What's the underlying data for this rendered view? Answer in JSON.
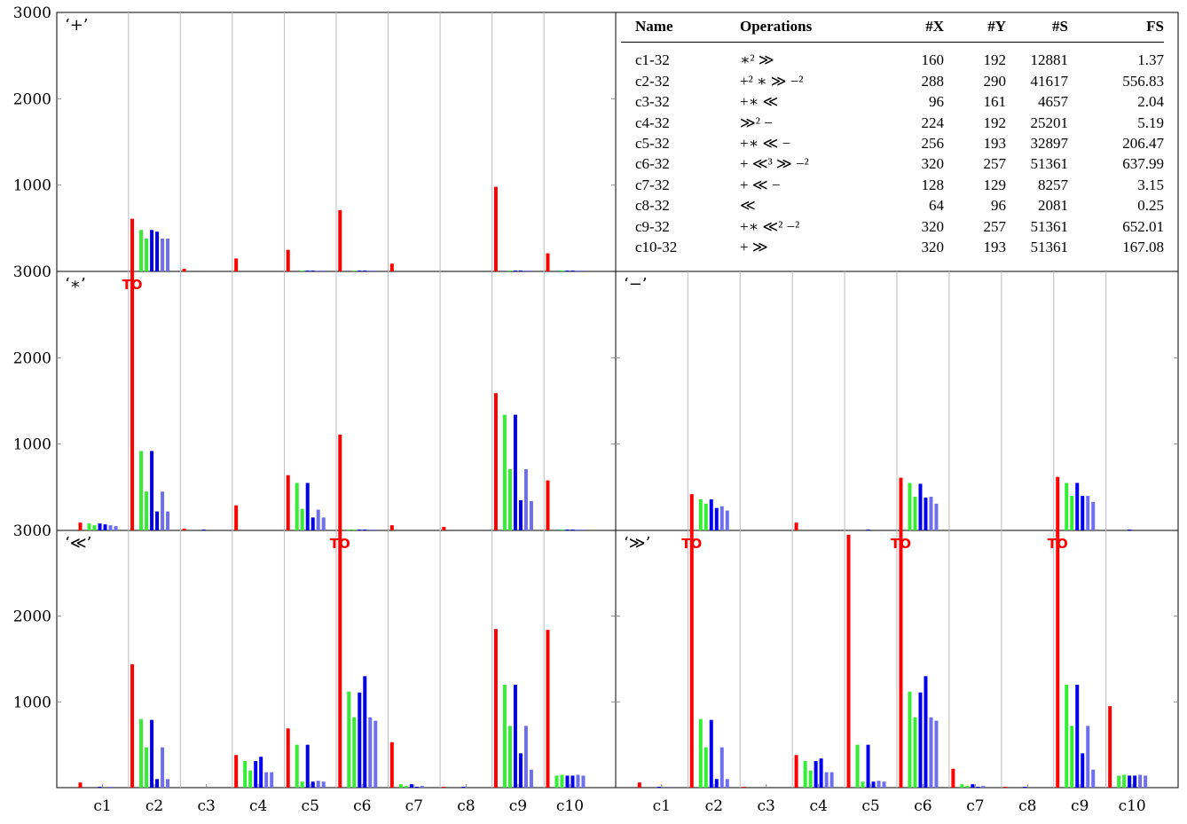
{
  "y_ticks": [
    "3000",
    "2000",
    "1000"
  ],
  "x_ticks": [
    "c1",
    "c2",
    "c3",
    "c4",
    "c5",
    "c6",
    "c7",
    "c8",
    "c9",
    "c10"
  ],
  "to_label": "TO",
  "colors": [
    "#ff0000",
    "#33ee33",
    "#0000ee",
    "#6f6fee"
  ],
  "table": {
    "headers": {
      "name": "Name",
      "ops": "Operations",
      "x": "#X",
      "y": "#Y",
      "s": "#S",
      "fs": "FS"
    },
    "rows": [
      {
        "name": "c1-32",
        "ops": "∗² ≫",
        "x": "160",
        "y": "192",
        "s": "12881",
        "fs": "1.37"
      },
      {
        "name": "c2-32",
        "ops": "+² ∗ ≫ −²",
        "x": "288",
        "y": "290",
        "s": "41617",
        "fs": "556.83"
      },
      {
        "name": "c3-32",
        "ops": "+∗ ≪",
        "x": "96",
        "y": "161",
        "s": "4657",
        "fs": "2.04"
      },
      {
        "name": "c4-32",
        "ops": "≫² −",
        "x": "224",
        "y": "192",
        "s": "25201",
        "fs": "5.19"
      },
      {
        "name": "c5-32",
        "ops": "+∗ ≪ −",
        "x": "256",
        "y": "193",
        "s": "32897",
        "fs": "206.47"
      },
      {
        "name": "c6-32",
        "ops": "+ ≪³ ≫ −²",
        "x": "320",
        "y": "257",
        "s": "51361",
        "fs": "637.99"
      },
      {
        "name": "c7-32",
        "ops": "+ ≪ −",
        "x": "128",
        "y": "129",
        "s": "8257",
        "fs": "3.15"
      },
      {
        "name": "c8-32",
        "ops": "≪",
        "x": "64",
        "y": "96",
        "s": "2081",
        "fs": "0.25"
      },
      {
        "name": "c9-32",
        "ops": "+∗ ≪² −²",
        "x": "320",
        "y": "257",
        "s": "51361",
        "fs": "652.01"
      },
      {
        "name": "c10-32",
        "ops": "+ ≫",
        "x": "320",
        "y": "193",
        "s": "51361",
        "fs": "167.08"
      }
    ]
  },
  "chart_data": [
    {
      "type": "bar",
      "title": "‘+’",
      "panel": "top-left",
      "ylim": [
        0,
        3000
      ],
      "categories": [
        "c1",
        "c2",
        "c3",
        "c4",
        "c5",
        "c6",
        "c7",
        "c8",
        "c9",
        "c10"
      ],
      "groups": [
        [
          0,
          0,
          0,
          0,
          0,
          0,
          0
        ],
        [
          610,
          480,
          380,
          480,
          460,
          380,
          380
        ],
        [
          30,
          0,
          0,
          0,
          0,
          0,
          0
        ],
        [
          150,
          0,
          0,
          0,
          0,
          0,
          0
        ],
        [
          250,
          0,
          10,
          10,
          10,
          10,
          10
        ],
        [
          710,
          0,
          10,
          10,
          10,
          10,
          10
        ],
        [
          90,
          0,
          0,
          0,
          0,
          0,
          0
        ],
        [
          0,
          0,
          0,
          0,
          0,
          0,
          0
        ],
        [
          980,
          0,
          10,
          10,
          10,
          10,
          10
        ],
        [
          210,
          0,
          10,
          10,
          10,
          10,
          10
        ]
      ],
      "timeouts": []
    },
    {
      "type": "bar",
      "title": "‘∗’",
      "panel": "middle-left",
      "ylim": [
        0,
        3000
      ],
      "categories": [
        "c1",
        "c2",
        "c3",
        "c4",
        "c5",
        "c6",
        "c7",
        "c8",
        "c9",
        "c10"
      ],
      "groups": [
        [
          90,
          80,
          60,
          80,
          70,
          60,
          50
        ],
        [
          3000,
          920,
          450,
          920,
          220,
          450,
          220
        ],
        [
          20,
          0,
          0,
          10,
          0,
          0,
          0
        ],
        [
          290,
          0,
          0,
          0,
          0,
          0,
          0
        ],
        [
          640,
          550,
          250,
          550,
          150,
          240,
          150
        ],
        [
          1110,
          10,
          10,
          10,
          10,
          10,
          10
        ],
        [
          60,
          0,
          0,
          0,
          0,
          0,
          0
        ],
        [
          40,
          0,
          0,
          0,
          0,
          0,
          0
        ],
        [
          1590,
          1340,
          710,
          1340,
          350,
          710,
          340
        ],
        [
          580,
          0,
          10,
          10,
          10,
          10,
          10
        ]
      ],
      "timeouts": [
        1
      ]
    },
    {
      "type": "bar",
      "title": "‘−’",
      "panel": "middle-right",
      "ylim": [
        0,
        3000
      ],
      "categories": [
        "c1",
        "c2",
        "c3",
        "c4",
        "c5",
        "c6",
        "c7",
        "c8",
        "c9",
        "c10"
      ],
      "groups": [
        [
          0,
          0,
          0,
          0,
          0,
          0,
          0
        ],
        [
          420,
          360,
          310,
          360,
          260,
          280,
          230
        ],
        [
          0,
          0,
          0,
          0,
          0,
          0,
          0
        ],
        [
          90,
          0,
          0,
          0,
          0,
          0,
          0
        ],
        [
          0,
          0,
          0,
          10,
          0,
          0,
          0
        ],
        [
          610,
          550,
          390,
          540,
          380,
          390,
          310
        ],
        [
          0,
          0,
          0,
          0,
          0,
          0,
          0
        ],
        [
          0,
          0,
          0,
          0,
          0,
          0,
          0
        ],
        [
          620,
          550,
          400,
          550,
          400,
          400,
          330
        ],
        [
          0,
          0,
          0,
          10,
          0,
          0,
          0
        ]
      ],
      "timeouts": []
    },
    {
      "type": "bar",
      "title": "‘≪’",
      "panel": "bottom-left",
      "ylim": [
        0,
        3000
      ],
      "categories": [
        "c1",
        "c2",
        "c3",
        "c4",
        "c5",
        "c6",
        "c7",
        "c8",
        "c9",
        "c10"
      ],
      "groups": [
        [
          60,
          0,
          0,
          10,
          0,
          10,
          0
        ],
        [
          1440,
          800,
          470,
          790,
          100,
          470,
          100
        ],
        [
          0,
          0,
          0,
          0,
          0,
          0,
          0
        ],
        [
          380,
          310,
          200,
          310,
          360,
          180,
          180
        ],
        [
          690,
          500,
          70,
          500,
          70,
          80,
          70
        ],
        [
          3000,
          1120,
          820,
          1110,
          1300,
          820,
          780
        ],
        [
          530,
          40,
          20,
          40,
          10,
          20,
          0
        ],
        [
          10,
          0,
          0,
          10,
          0,
          0,
          0
        ],
        [
          1850,
          1200,
          720,
          1200,
          400,
          720,
          210
        ],
        [
          1840,
          140,
          150,
          140,
          140,
          150,
          140
        ]
      ],
      "timeouts": [
        5
      ]
    },
    {
      "type": "bar",
      "title": "‘≫’",
      "panel": "bottom-right",
      "ylim": [
        0,
        3000
      ],
      "categories": [
        "c1",
        "c2",
        "c3",
        "c4",
        "c5",
        "c6",
        "c7",
        "c8",
        "c9",
        "c10"
      ],
      "groups": [
        [
          60,
          0,
          0,
          10,
          0,
          10,
          0
        ],
        [
          3000,
          800,
          470,
          790,
          100,
          470,
          100
        ],
        [
          10,
          0,
          0,
          0,
          0,
          0,
          0
        ],
        [
          380,
          310,
          200,
          310,
          340,
          180,
          180
        ],
        [
          2950,
          500,
          70,
          500,
          70,
          80,
          70
        ],
        [
          3000,
          1120,
          820,
          1110,
          1300,
          820,
          780
        ],
        [
          220,
          40,
          20,
          40,
          10,
          20,
          0
        ],
        [
          10,
          0,
          0,
          10,
          0,
          0,
          0
        ],
        [
          3000,
          1200,
          720,
          1200,
          400,
          720,
          210
        ],
        [
          950,
          140,
          150,
          140,
          140,
          150,
          140
        ]
      ],
      "timeouts": [
        1,
        5,
        8
      ]
    }
  ]
}
